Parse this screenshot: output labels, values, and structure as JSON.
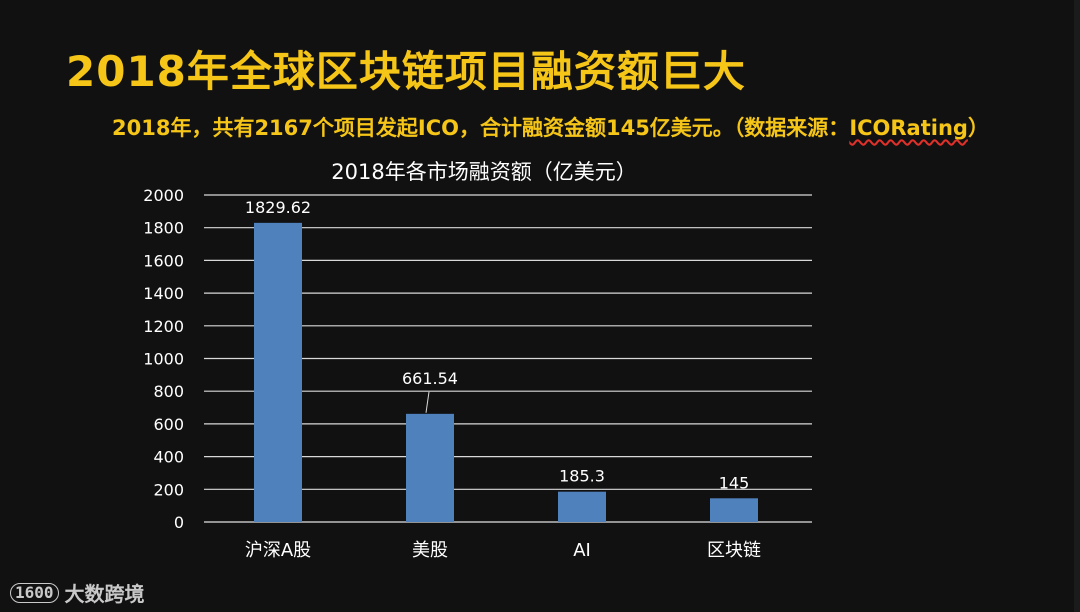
{
  "slide": {
    "title": "2018年全球区块链项目融资额巨大",
    "subtitle_main": "2018年，共有2167个项目发起ICO，合计融资金额145亿美元。（数据来源：",
    "subtitle_source": "ICORating",
    "subtitle_end": "）",
    "brand_mark": "1600",
    "brand_text": "大数跨境"
  },
  "chart_data": {
    "type": "bar",
    "title": "2018年各市场融资额（亿美元）",
    "categories": [
      "沪深A股",
      "美股",
      "AI",
      "区块链"
    ],
    "values": [
      1829.62,
      661.54,
      185.3,
      145
    ],
    "data_labels": [
      "1829.62",
      "661.54",
      "185.3",
      "145"
    ],
    "yticks": [
      "0",
      "200",
      "400",
      "600",
      "800",
      "1000",
      "1200",
      "1400",
      "1600",
      "1800",
      "2000"
    ],
    "ylim": [
      0,
      2000
    ],
    "grid": true,
    "legend": "none",
    "bar_color": "#4f81bd",
    "xlabel": "",
    "ylabel": ""
  }
}
